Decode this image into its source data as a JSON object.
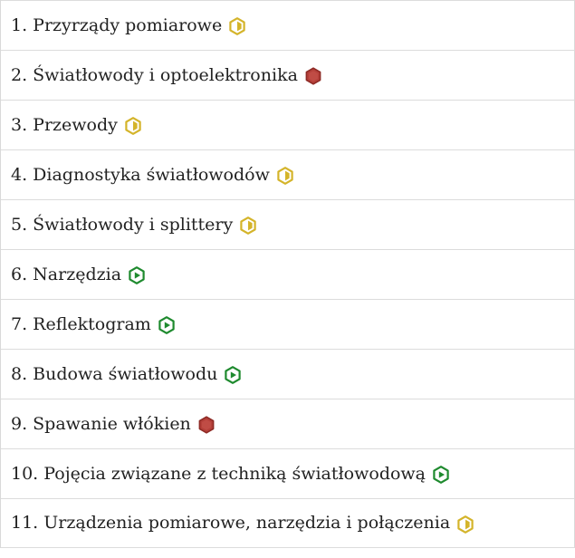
{
  "colors": {
    "partial": "#d4b42a",
    "active": "#1e8a2e",
    "locked": "#b5403a"
  },
  "items": [
    {
      "label": "1. Przyrządy pomiarowe",
      "status": "partial",
      "icon": "half-hexagon-icon"
    },
    {
      "label": "2. Światłowody i optoelektronika",
      "status": "locked",
      "icon": "red-hexagon-icon"
    },
    {
      "label": "3. Przewody",
      "status": "partial",
      "icon": "half-hexagon-icon"
    },
    {
      "label": "4. Diagnostyka światłowodów",
      "status": "partial",
      "icon": "half-hexagon-icon"
    },
    {
      "label": "5. Światłowody i splittery",
      "status": "partial",
      "icon": "half-hexagon-icon"
    },
    {
      "label": "6. Narzędzia",
      "status": "active",
      "icon": "play-hexagon-icon"
    },
    {
      "label": "7. Reflektogram",
      "status": "active",
      "icon": "play-hexagon-icon"
    },
    {
      "label": "8. Budowa światłowodu",
      "status": "active",
      "icon": "play-hexagon-icon"
    },
    {
      "label": "9. Spawanie włókien",
      "status": "locked",
      "icon": "red-hexagon-icon"
    },
    {
      "label": "10. Pojęcia związane z techniką światłowodową",
      "status": "active",
      "icon": "play-hexagon-icon"
    },
    {
      "label": "11. Urządzenia pomiarowe, narzędzia i połączenia",
      "status": "partial",
      "icon": "half-hexagon-icon"
    }
  ]
}
